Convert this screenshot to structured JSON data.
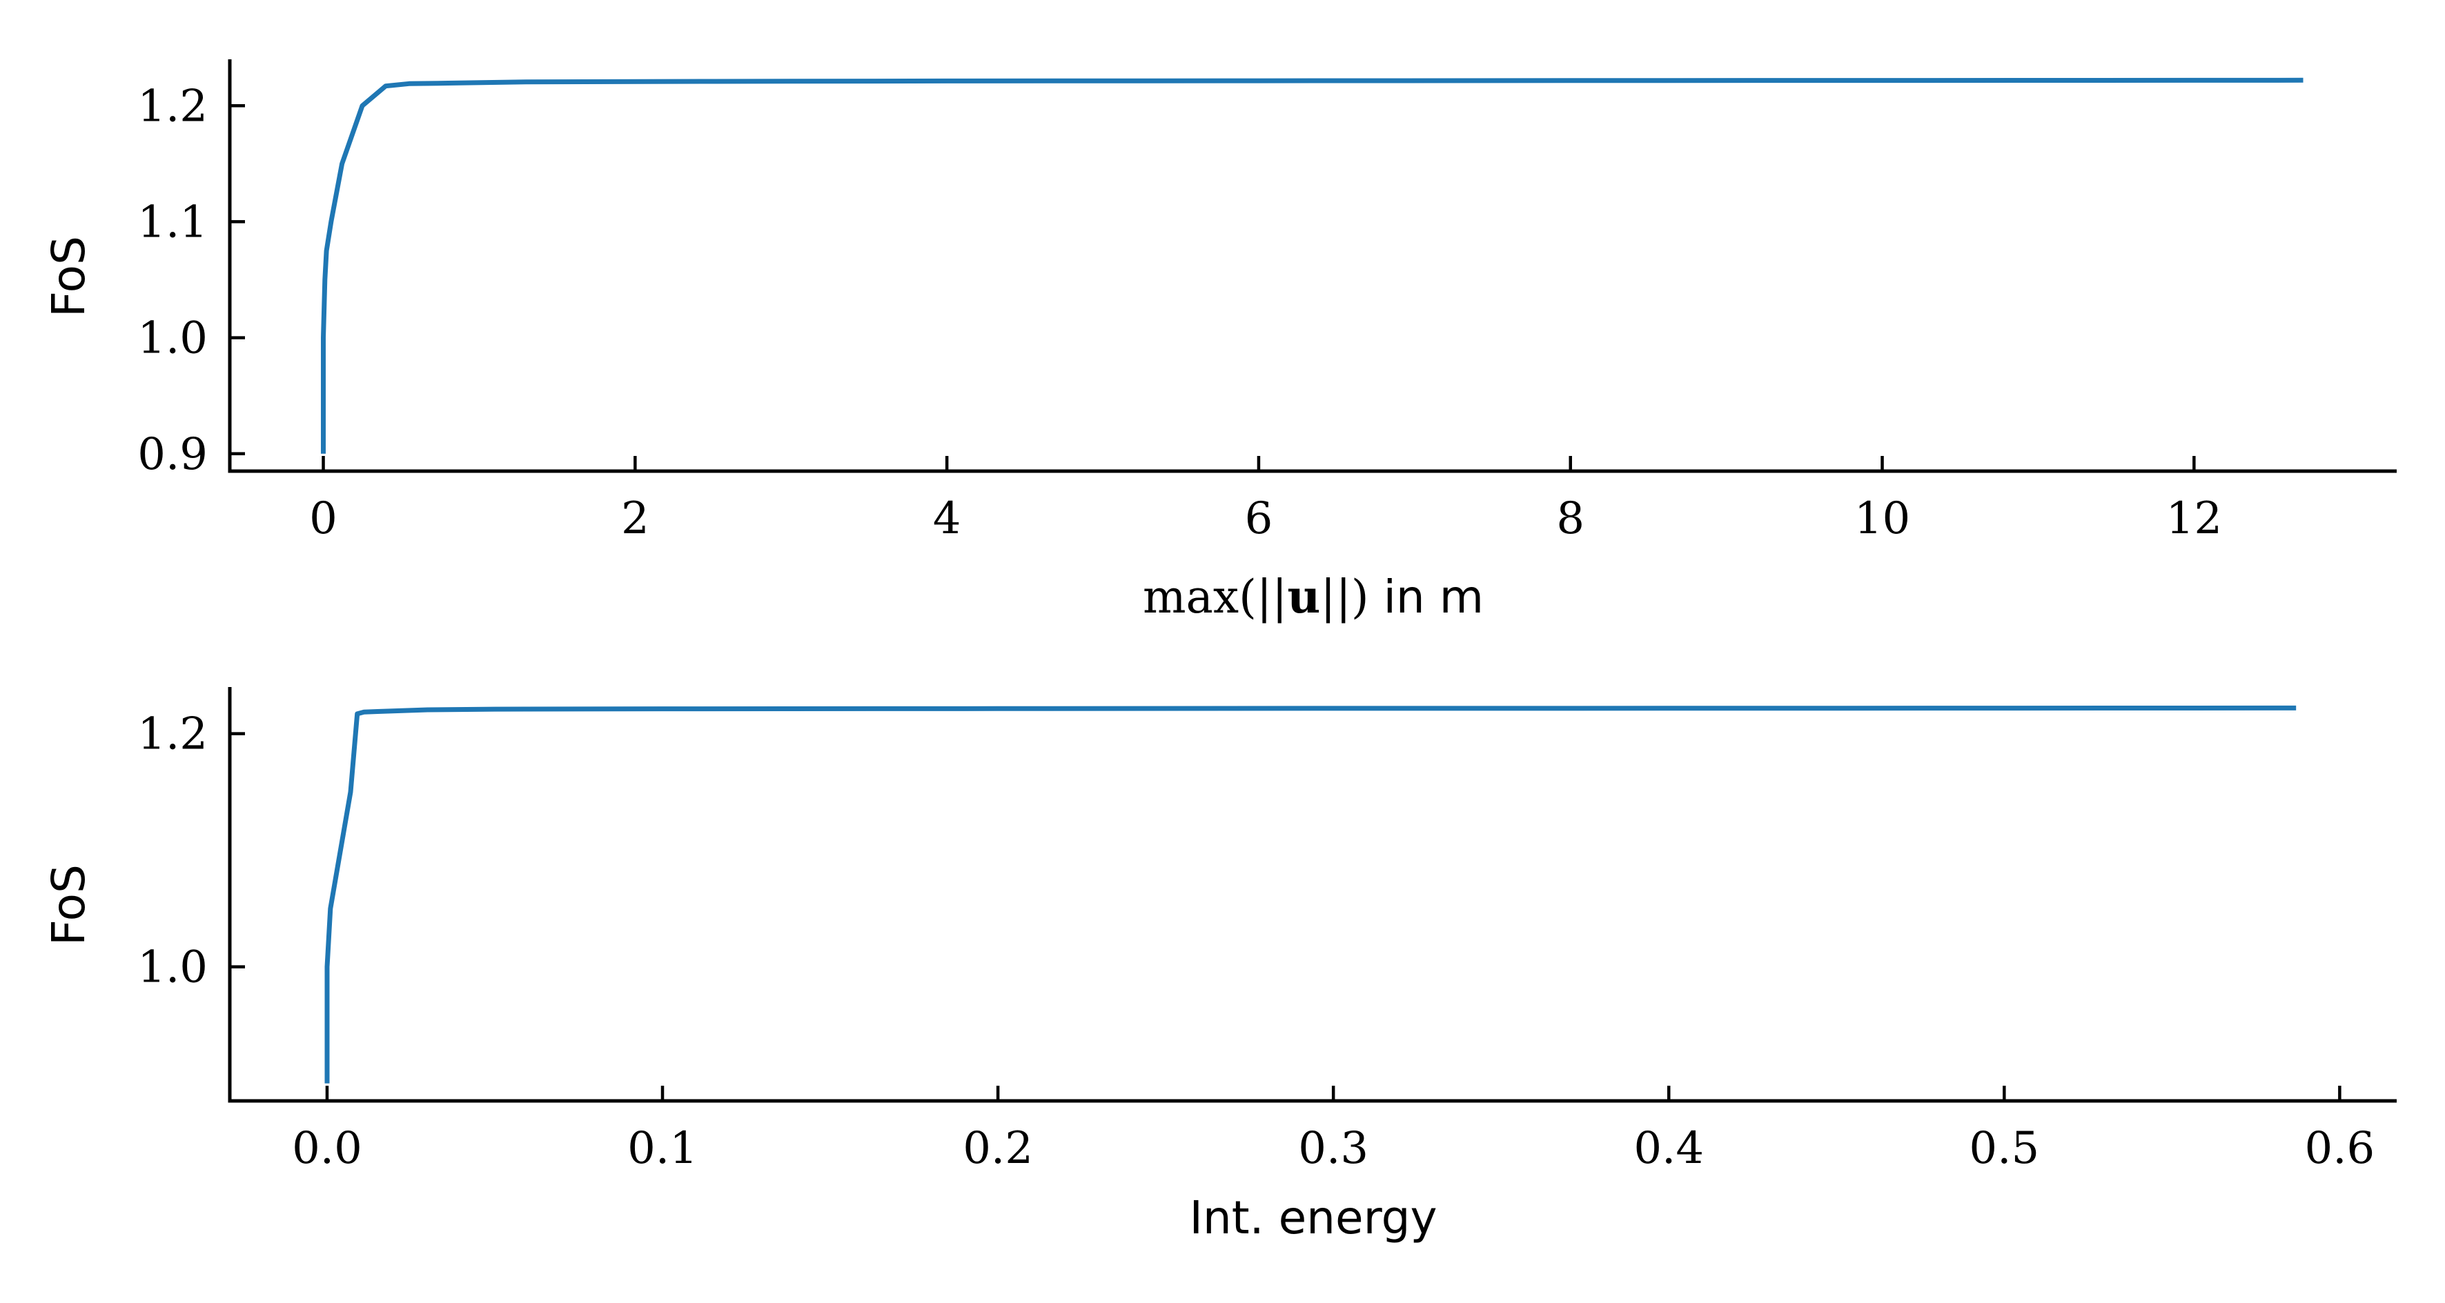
{
  "colors": {
    "series": "#1f77b4",
    "axis": "#000000"
  },
  "chart_data": [
    {
      "type": "line",
      "xlabel": {
        "prefix": "max(||",
        "bold": "u",
        "suffix": "||)",
        "unit": " in m"
      },
      "ylabel": "FoS",
      "xlim": [
        -0.6,
        13.3
      ],
      "ylim": [
        0.885,
        1.24
      ],
      "xticks": [
        0,
        2,
        4,
        6,
        8,
        10,
        12
      ],
      "xtick_labels": [
        "0",
        "2",
        "4",
        "6",
        "8",
        "10",
        "12"
      ],
      "yticks": [
        0.9,
        1.0,
        1.1,
        1.2
      ],
      "ytick_labels": [
        "0.9",
        "1.0",
        "1.1",
        "1.2"
      ],
      "grid": false,
      "legend": false,
      "series": [
        {
          "x": [
            0,
            0,
            0.01,
            0.02,
            0.05,
            0.12,
            0.25,
            0.4,
            0.55,
            0.8,
            1.3,
            2.5,
            4,
            6,
            8,
            10,
            12,
            12.7
          ],
          "y": [
            0.9,
            1.0,
            1.05,
            1.075,
            1.1,
            1.15,
            1.2,
            1.217,
            1.219,
            1.2195,
            1.2205,
            1.221,
            1.2213,
            1.2215,
            1.2217,
            1.2218,
            1.2219,
            1.222
          ]
        }
      ]
    },
    {
      "type": "line",
      "xlabel": "Int. energy",
      "ylabel": "FoS",
      "xlim": [
        -0.029,
        0.617
      ],
      "ylim": [
        0.885,
        1.24
      ],
      "xticks": [
        0.0,
        0.1,
        0.2,
        0.3,
        0.4,
        0.5,
        0.6
      ],
      "xtick_labels": [
        "0.0",
        "0.1",
        "0.2",
        "0.3",
        "0.4",
        "0.5",
        "0.6"
      ],
      "yticks": [
        1.0,
        1.2
      ],
      "ytick_labels": [
        "1.0",
        "1.2"
      ],
      "grid": false,
      "legend": false,
      "series": [
        {
          "x": [
            0,
            0,
            0.0005,
            0.001,
            0.007,
            0.009,
            0.011,
            0.015,
            0.03,
            0.05,
            0.1,
            0.2,
            0.3,
            0.4,
            0.5,
            0.587
          ],
          "y": [
            0.9,
            1.0,
            1.025,
            1.05,
            1.15,
            1.217,
            1.2185,
            1.219,
            1.2205,
            1.221,
            1.2213,
            1.2215,
            1.2217,
            1.2218,
            1.2219,
            1.222
          ]
        }
      ]
    }
  ]
}
